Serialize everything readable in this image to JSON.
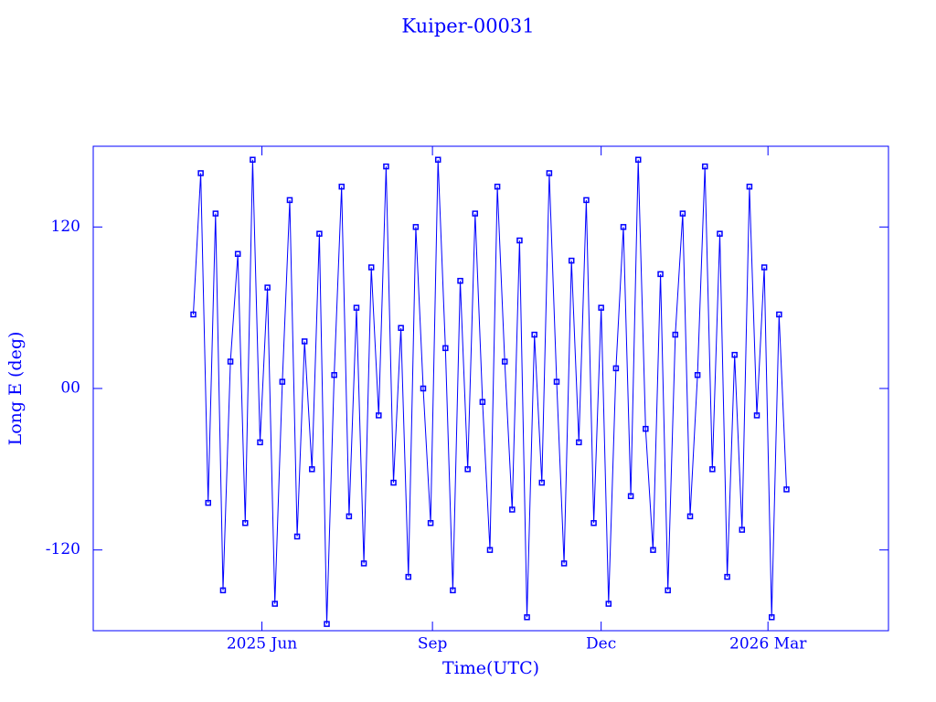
{
  "chart_data": {
    "type": "line",
    "title": "Kuiper-00031",
    "x_label": "Time(UTC)",
    "y_label": "Long E (deg)",
    "x": [
      "2025-04-25",
      "2025-04-29",
      "2025-05-03",
      "2025-05-07",
      "2025-05-11",
      "2025-05-15",
      "2025-05-19",
      "2025-05-23",
      "2025-05-27",
      "2025-05-31",
      "2025-06-04",
      "2025-06-08",
      "2025-06-12",
      "2025-06-16",
      "2025-06-20",
      "2025-06-24",
      "2025-06-28",
      "2025-07-02",
      "2025-07-06",
      "2025-07-10",
      "2025-07-14",
      "2025-07-18",
      "2025-07-22",
      "2025-07-26",
      "2025-07-30",
      "2025-08-03",
      "2025-08-07",
      "2025-08-11",
      "2025-08-15",
      "2025-08-19",
      "2025-08-23",
      "2025-08-27",
      "2025-08-31",
      "2025-09-04",
      "2025-09-08",
      "2025-09-12",
      "2025-09-16",
      "2025-09-20",
      "2025-09-24",
      "2025-09-28",
      "2025-10-02",
      "2025-10-06",
      "2025-10-10",
      "2025-10-14",
      "2025-10-18",
      "2025-10-22",
      "2025-10-26",
      "2025-10-30",
      "2025-11-03",
      "2025-11-07",
      "2025-11-11",
      "2025-11-15",
      "2025-11-19",
      "2025-11-23",
      "2025-11-27",
      "2025-12-01",
      "2025-12-05",
      "2025-12-09",
      "2025-12-13",
      "2025-12-17",
      "2025-12-21",
      "2025-12-25",
      "2025-12-29",
      "2026-01-02",
      "2026-01-06",
      "2026-01-10",
      "2026-01-14",
      "2026-01-18",
      "2026-01-22",
      "2026-01-26",
      "2026-01-30",
      "2026-02-03",
      "2026-02-07",
      "2026-02-11",
      "2026-02-15",
      "2026-02-19",
      "2026-02-23",
      "2026-02-27",
      "2026-03-03",
      "2026-03-07",
      "2026-03-11"
    ],
    "series": [
      {
        "color": "#0000ff",
        "values": [
          55,
          160,
          -85,
          130,
          -150,
          20,
          100,
          -100,
          170,
          -40,
          75,
          -160,
          5,
          140,
          -110,
          35,
          -60,
          115,
          -175,
          10,
          150,
          -95,
          60,
          -130,
          90,
          -20,
          165,
          -70,
          45,
          -140,
          120,
          0,
          -100,
          170,
          30,
          -150,
          80,
          -60,
          130,
          -10,
          -120,
          150,
          20,
          -90,
          110,
          -170,
          40,
          -70,
          160,
          5,
          -130,
          95,
          -40,
          140,
          -100,
          60,
          -160,
          15,
          120,
          -80,
          170,
          -30,
          -120,
          85,
          -150,
          40,
          130,
          -95,
          10,
          165,
          -60,
          115,
          -140,
          25,
          -105,
          150,
          -20,
          90,
          -170,
          55,
          -75
        ]
      }
    ],
    "xlim": [
      "2025-03-02",
      "2026-05-05"
    ],
    "xticks": [
      {
        "value": "2025-06-01",
        "label": "2025 Jun"
      },
      {
        "value": "2025-09-01",
        "label": "Sep"
      },
      {
        "value": "2025-12-01",
        "label": "Dec"
      },
      {
        "value": "2026-03-01",
        "label": "2026 Mar"
      }
    ],
    "ylim": [
      -180,
      180
    ],
    "yticks": [
      {
        "value": -120,
        "label": "-120"
      },
      {
        "value": 0,
        "label": "00"
      },
      {
        "value": 120,
        "label": "120"
      }
    ]
  }
}
